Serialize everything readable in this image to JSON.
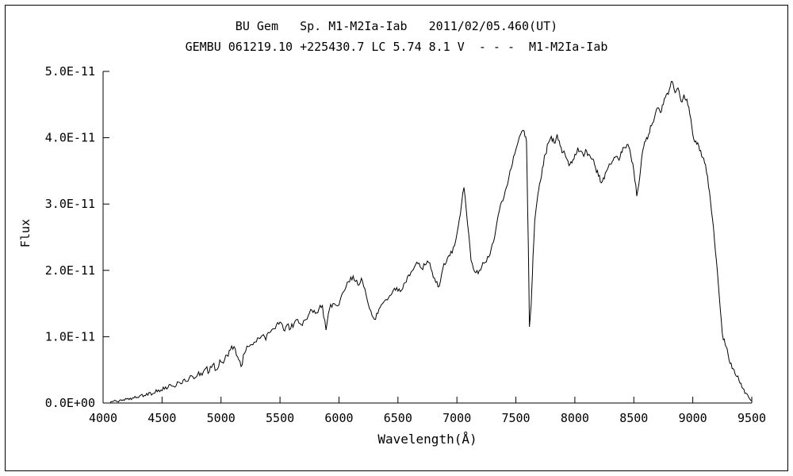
{
  "chart_data": {
    "type": "line",
    "title": "BU Gem   Sp. M1-M2Ia-Iab   2011/02/05.460(UT)",
    "subtitle": "GEMBU 061219.10 +225430.7 LC 5.74 8.1 V  - - -  M1-M2Ia-Iab",
    "xlabel": "Wavelength(Å)",
    "ylabel": "Flux",
    "xlim": [
      4000,
      9500
    ],
    "ylim": [
      0,
      5e-11
    ],
    "grid": false,
    "legend_position": "in-subtitle",
    "line_color": "#000000",
    "x_ticks": [
      4000,
      4500,
      5000,
      5500,
      6000,
      6500,
      7000,
      7500,
      8000,
      8500,
      9000,
      9500
    ],
    "y_tick_values_x1e11": [
      0,
      1,
      2,
      3,
      4,
      5
    ],
    "y_tick_labels": [
      "0.0E+00",
      "1.0E-11",
      "2.0E-11",
      "3.0E-11",
      "4.0E-11",
      "5.0E-11"
    ],
    "ymax_x1e11": 5,
    "flux_unit": 1e-11,
    "noise_amplitude_x1e11": 0.05,
    "noise_seed": 42,
    "series": [
      {
        "name": "BU Gem spectrum",
        "points_format": [
          "wavelength_A",
          "flux_x1e-11"
        ],
        "points": [
          [
            4060,
            0.01
          ],
          [
            4090,
            0.03
          ],
          [
            4120,
            0.02
          ],
          [
            4150,
            0.05
          ],
          [
            4180,
            0.04
          ],
          [
            4210,
            0.07
          ],
          [
            4240,
            0.05
          ],
          [
            4270,
            0.1
          ],
          [
            4300,
            0.08
          ],
          [
            4330,
            0.13
          ],
          [
            4360,
            0.11
          ],
          [
            4390,
            0.16
          ],
          [
            4420,
            0.14
          ],
          [
            4450,
            0.2
          ],
          [
            4480,
            0.17
          ],
          [
            4510,
            0.24
          ],
          [
            4540,
            0.21
          ],
          [
            4570,
            0.28
          ],
          [
            4600,
            0.25
          ],
          [
            4630,
            0.32
          ],
          [
            4660,
            0.29
          ],
          [
            4690,
            0.36
          ],
          [
            4720,
            0.33
          ],
          [
            4750,
            0.41
          ],
          [
            4780,
            0.38
          ],
          [
            4810,
            0.47
          ],
          [
            4840,
            0.42
          ],
          [
            4870,
            0.52
          ],
          [
            4900,
            0.47
          ],
          [
            4930,
            0.58
          ],
          [
            4960,
            0.5
          ],
          [
            4990,
            0.65
          ],
          [
            5020,
            0.6
          ],
          [
            5050,
            0.72
          ],
          [
            5080,
            0.8
          ],
          [
            5110,
            0.85
          ],
          [
            5140,
            0.7
          ],
          [
            5170,
            0.55
          ],
          [
            5200,
            0.75
          ],
          [
            5230,
            0.85
          ],
          [
            5260,
            0.88
          ],
          [
            5290,
            0.92
          ],
          [
            5320,
            0.98
          ],
          [
            5350,
            1.02
          ],
          [
            5380,
            0.95
          ],
          [
            5410,
            1.06
          ],
          [
            5440,
            1.12
          ],
          [
            5470,
            1.18
          ],
          [
            5500,
            1.22
          ],
          [
            5530,
            1.1
          ],
          [
            5560,
            1.18
          ],
          [
            5590,
            1.12
          ],
          [
            5620,
            1.2
          ],
          [
            5650,
            1.26
          ],
          [
            5680,
            1.18
          ],
          [
            5710,
            1.25
          ],
          [
            5740,
            1.32
          ],
          [
            5770,
            1.4
          ],
          [
            5800,
            1.35
          ],
          [
            5830,
            1.42
          ],
          [
            5860,
            1.47
          ],
          [
            5890,
            1.1
          ],
          [
            5920,
            1.42
          ],
          [
            5950,
            1.5
          ],
          [
            5980,
            1.47
          ],
          [
            6010,
            1.55
          ],
          [
            6040,
            1.68
          ],
          [
            6070,
            1.82
          ],
          [
            6100,
            1.9
          ],
          [
            6130,
            1.85
          ],
          [
            6160,
            1.78
          ],
          [
            6190,
            1.88
          ],
          [
            6220,
            1.72
          ],
          [
            6250,
            1.48
          ],
          [
            6280,
            1.32
          ],
          [
            6310,
            1.26
          ],
          [
            6340,
            1.42
          ],
          [
            6370,
            1.5
          ],
          [
            6400,
            1.56
          ],
          [
            6430,
            1.62
          ],
          [
            6460,
            1.7
          ],
          [
            6490,
            1.74
          ],
          [
            6520,
            1.68
          ],
          [
            6550,
            1.8
          ],
          [
            6580,
            1.9
          ],
          [
            6610,
            1.97
          ],
          [
            6640,
            2.05
          ],
          [
            6670,
            2.1
          ],
          [
            6700,
            2.03
          ],
          [
            6730,
            2.08
          ],
          [
            6760,
            2.12
          ],
          [
            6790,
            1.98
          ],
          [
            6820,
            1.82
          ],
          [
            6850,
            1.76
          ],
          [
            6880,
            2.02
          ],
          [
            6910,
            2.12
          ],
          [
            6940,
            2.22
          ],
          [
            6970,
            2.35
          ],
          [
            7000,
            2.55
          ],
          [
            7030,
            2.85
          ],
          [
            7060,
            3.25
          ],
          [
            7090,
            2.7
          ],
          [
            7120,
            2.15
          ],
          [
            7150,
            1.98
          ],
          [
            7180,
            1.95
          ],
          [
            7210,
            2.05
          ],
          [
            7240,
            2.12
          ],
          [
            7270,
            2.2
          ],
          [
            7300,
            2.4
          ],
          [
            7330,
            2.62
          ],
          [
            7360,
            2.9
          ],
          [
            7390,
            3.05
          ],
          [
            7420,
            3.25
          ],
          [
            7450,
            3.5
          ],
          [
            7480,
            3.72
          ],
          [
            7510,
            3.88
          ],
          [
            7540,
            4.05
          ],
          [
            7570,
            4.1
          ],
          [
            7590,
            3.95
          ],
          [
            7605,
            2.4
          ],
          [
            7615,
            1.15
          ],
          [
            7630,
            1.5
          ],
          [
            7645,
            2.2
          ],
          [
            7660,
            2.75
          ],
          [
            7680,
            3.05
          ],
          [
            7700,
            3.3
          ],
          [
            7725,
            3.55
          ],
          [
            7750,
            3.75
          ],
          [
            7775,
            3.92
          ],
          [
            7800,
            4.02
          ],
          [
            7825,
            3.92
          ],
          [
            7850,
            4.05
          ],
          [
            7875,
            3.88
          ],
          [
            7900,
            3.78
          ],
          [
            7925,
            3.7
          ],
          [
            7950,
            3.58
          ],
          [
            7975,
            3.62
          ],
          [
            8000,
            3.75
          ],
          [
            8025,
            3.85
          ],
          [
            8050,
            3.8
          ],
          [
            8075,
            3.72
          ],
          [
            8100,
            3.8
          ],
          [
            8125,
            3.74
          ],
          [
            8150,
            3.68
          ],
          [
            8175,
            3.55
          ],
          [
            8200,
            3.42
          ],
          [
            8225,
            3.32
          ],
          [
            8250,
            3.38
          ],
          [
            8275,
            3.52
          ],
          [
            8300,
            3.6
          ],
          [
            8325,
            3.66
          ],
          [
            8350,
            3.72
          ],
          [
            8375,
            3.66
          ],
          [
            8400,
            3.78
          ],
          [
            8425,
            3.85
          ],
          [
            8450,
            3.9
          ],
          [
            8475,
            3.72
          ],
          [
            8500,
            3.5
          ],
          [
            8525,
            3.12
          ],
          [
            8550,
            3.4
          ],
          [
            8575,
            3.8
          ],
          [
            8600,
            3.95
          ],
          [
            8625,
            4.05
          ],
          [
            8650,
            4.18
          ],
          [
            8675,
            4.3
          ],
          [
            8700,
            4.45
          ],
          [
            8725,
            4.38
          ],
          [
            8750,
            4.5
          ],
          [
            8775,
            4.65
          ],
          [
            8800,
            4.72
          ],
          [
            8825,
            4.85
          ],
          [
            8850,
            4.68
          ],
          [
            8875,
            4.75
          ],
          [
            8900,
            4.55
          ],
          [
            8925,
            4.65
          ],
          [
            8950,
            4.58
          ],
          [
            8975,
            4.35
          ],
          [
            9000,
            4.05
          ],
          [
            9025,
            3.95
          ],
          [
            9050,
            3.88
          ],
          [
            9075,
            3.72
          ],
          [
            9100,
            3.62
          ],
          [
            9125,
            3.42
          ],
          [
            9150,
            3.05
          ],
          [
            9175,
            2.65
          ],
          [
            9200,
            2.15
          ],
          [
            9225,
            1.6
          ],
          [
            9250,
            1.05
          ],
          [
            9275,
            0.88
          ],
          [
            9300,
            0.72
          ],
          [
            9325,
            0.6
          ],
          [
            9350,
            0.5
          ],
          [
            9375,
            0.4
          ],
          [
            9400,
            0.3
          ],
          [
            9425,
            0.22
          ],
          [
            9450,
            0.15
          ],
          [
            9475,
            0.08
          ],
          [
            9500,
            0.04
          ]
        ]
      }
    ]
  }
}
